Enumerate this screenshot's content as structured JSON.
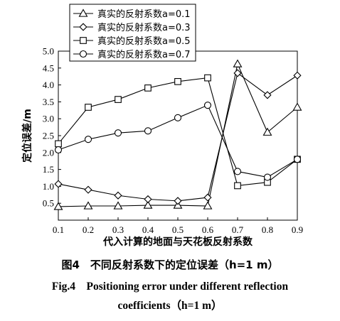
{
  "chart_data": {
    "type": "line",
    "xlabel": "代入计算的地面与天花板反射系数",
    "ylabel": "定位误差/m",
    "xlim": [
      0.1,
      0.9
    ],
    "ylim": [
      0,
      5.0
    ],
    "x": [
      0.1,
      0.2,
      0.3,
      0.4,
      0.5,
      0.6,
      0.7,
      0.8,
      0.9
    ],
    "x_tick_labels": [
      "0.1",
      "0.2",
      "0.3",
      "0.4",
      "0.5",
      "0.6",
      "0.7",
      "0.8",
      "0.9"
    ],
    "y_ticks": [
      0.5,
      1.0,
      1.5,
      2.0,
      2.5,
      3.0,
      3.5,
      4.0,
      4.5,
      5.0
    ],
    "y_tick_labels": [
      "0.5",
      "1.0",
      "1.5",
      "2.0",
      "2.5",
      "3.0",
      "3.5",
      "4.0",
      "4.5",
      "5.0"
    ],
    "legend_position": "top-left",
    "grid": false,
    "series": [
      {
        "name": "真实的反射系数a=0.1",
        "marker": "triangle",
        "values": [
          0.4,
          0.42,
          0.42,
          0.44,
          0.44,
          0.42,
          4.62,
          2.6,
          3.34
        ]
      },
      {
        "name": "真实的反射系数a=0.3",
        "marker": "diamond",
        "values": [
          1.07,
          0.9,
          0.73,
          0.62,
          0.57,
          0.67,
          4.35,
          3.7,
          4.28
        ]
      },
      {
        "name": "真实的反射系数a=0.5",
        "marker": "square",
        "values": [
          2.26,
          3.34,
          3.57,
          3.91,
          4.1,
          4.21,
          1.02,
          1.12,
          1.8
        ]
      },
      {
        "name": "真实的反射系数a=0.7",
        "marker": "circle",
        "values": [
          2.08,
          2.39,
          2.58,
          2.64,
          3.03,
          3.4,
          1.44,
          1.27,
          1.8
        ]
      }
    ]
  },
  "captions": {
    "zh": "图4　不同反射系数下的定位误差（h=1 m）",
    "en_line1": "Fig.4　Positioning error under different reflection",
    "en_line2": "coefficients（h=1 m）"
  }
}
